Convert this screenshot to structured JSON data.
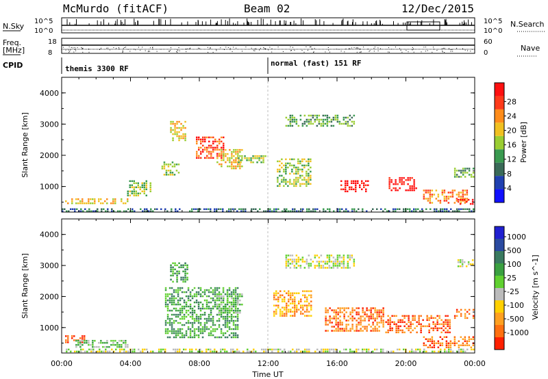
{
  "header": {
    "station": "McMurdo (fitACF)",
    "beam": "Beam 02",
    "date": "12/Dec/2015"
  },
  "top_panels": {
    "nsky_label": "N.Sky",
    "nsky_ticks": [
      "10^5",
      "10^0"
    ],
    "nsearch_label": "N.Search",
    "nsearch_ticks": [
      "10^5",
      "10^0"
    ],
    "freq_label": "Freq.",
    "freq_unit": "[MHz]",
    "freq_ticks": [
      "18",
      "8"
    ],
    "nave_label": "Nave",
    "nave_ticks": [
      "60",
      "0"
    ],
    "cpid_label": "CPID",
    "cpid_segments": [
      {
        "label": "themis 3300 RF",
        "start_hour": 0
      },
      {
        "label": "normal (fast) 151 RF",
        "start_hour": 12
      }
    ]
  },
  "colors": {
    "power_scale": [
      "#1010ff",
      "#2040b0",
      "#3a6a58",
      "#3a9a50",
      "#9acd32",
      "#f0c020",
      "#ff8c1a",
      "#ff3a1a",
      "#ff1010"
    ],
    "velocity_scale": [
      "#2020d0",
      "#2a4aa0",
      "#3a7a60",
      "#3aa040",
      "#60d030",
      "#bbbbbb",
      "#ffd000",
      "#ffa020",
      "#ff7010",
      "#ff2000"
    ]
  },
  "chart_data": [
    {
      "type": "heatmap",
      "title": "",
      "xlabel": "",
      "ylabel": "Slant Range [km]",
      "xlim": [
        0,
        24
      ],
      "ylim": [
        180,
        4500
      ],
      "x_ticks": [
        "00:00",
        "04:00",
        "08:00",
        "12:00",
        "16:00",
        "20:00",
        "00:00"
      ],
      "y_ticks": [
        "1000",
        "2000",
        "3000",
        "4000"
      ],
      "colorbar_label": "Power [dB]",
      "colorbar_ticks": [
        "4",
        "8",
        "12",
        "16",
        "20",
        "24",
        "28"
      ],
      "patches": [
        {
          "h0": 0.2,
          "h1": 3.8,
          "r0": 450,
          "r1": 620,
          "level": 5
        },
        {
          "h0": 0,
          "h1": 24,
          "r0": 180,
          "r1": 300,
          "level": 2
        },
        {
          "h0": 3.8,
          "h1": 5.2,
          "r0": 700,
          "r1": 1200,
          "level": 4
        },
        {
          "h0": 5.8,
          "h1": 6.8,
          "r0": 1400,
          "r1": 1800,
          "level": 4
        },
        {
          "h0": 6.3,
          "h1": 7.2,
          "r0": 2500,
          "r1": 3100,
          "level": 5
        },
        {
          "h0": 7.8,
          "h1": 9.4,
          "r0": 1900,
          "r1": 2600,
          "level": 7
        },
        {
          "h0": 9.0,
          "h1": 10.5,
          "r0": 1600,
          "r1": 2200,
          "level": 5
        },
        {
          "h0": 10.0,
          "h1": 11.8,
          "r0": 1800,
          "r1": 2000,
          "level": 4
        },
        {
          "h0": 12.5,
          "h1": 14.5,
          "r0": 1000,
          "r1": 1900,
          "level": 4
        },
        {
          "h0": 13.0,
          "h1": 17.0,
          "r0": 2950,
          "r1": 3300,
          "level": 3
        },
        {
          "h0": 16.2,
          "h1": 17.8,
          "r0": 850,
          "r1": 1200,
          "level": 8
        },
        {
          "h0": 19.0,
          "h1": 20.6,
          "r0": 900,
          "r1": 1300,
          "level": 8
        },
        {
          "h0": 21.0,
          "h1": 23.6,
          "r0": 450,
          "r1": 900,
          "level": 6
        },
        {
          "h0": 23.0,
          "h1": 23.9,
          "r0": 450,
          "r1": 600,
          "level": 8
        },
        {
          "h0": 22.8,
          "h1": 23.9,
          "r0": 1300,
          "r1": 1600,
          "level": 3
        }
      ]
    },
    {
      "type": "heatmap",
      "title": "",
      "xlabel": "Time UT",
      "ylabel": "Slant Range [km]",
      "xlim": [
        0,
        24
      ],
      "ylim": [
        180,
        4500
      ],
      "x_ticks": [
        "00:00",
        "04:00",
        "08:00",
        "12:00",
        "16:00",
        "20:00",
        "00:00"
      ],
      "y_ticks": [
        "1000",
        "2000",
        "3000",
        "4000"
      ],
      "colorbar_label": "Velocity [m s^-1]",
      "colorbar_ticks": [
        "1000",
        "500",
        "100",
        "25",
        "-25",
        "-100",
        "-500",
        "-1000"
      ],
      "patches": [
        {
          "h0": 0.2,
          "h1": 1.3,
          "r0": 500,
          "r1": 750,
          "level": 9
        },
        {
          "h0": 0.8,
          "h1": 3.8,
          "r0": 400,
          "r1": 600,
          "level": 4
        },
        {
          "h0": 0,
          "h1": 24,
          "r0": 180,
          "r1": 320,
          "level": 5
        },
        {
          "h0": 6.0,
          "h1": 10.2,
          "r0": 700,
          "r1": 2300,
          "level": 3
        },
        {
          "h0": 6.3,
          "h1": 7.3,
          "r0": 2500,
          "r1": 3100,
          "level": 3
        },
        {
          "h0": 9.0,
          "h1": 10.5,
          "r0": 1500,
          "r1": 2100,
          "level": 4
        },
        {
          "h0": 12.3,
          "h1": 14.5,
          "r0": 1400,
          "r1": 2200,
          "level": 7
        },
        {
          "h0": 13.0,
          "h1": 17.0,
          "r0": 2950,
          "r1": 3350,
          "level": 5
        },
        {
          "h0": 15.3,
          "h1": 18.7,
          "r0": 900,
          "r1": 1650,
          "level": 8
        },
        {
          "h0": 18.8,
          "h1": 22.6,
          "r0": 850,
          "r1": 1400,
          "level": 8
        },
        {
          "h0": 21.0,
          "h1": 23.9,
          "r0": 350,
          "r1": 720,
          "level": 8
        },
        {
          "h0": 22.8,
          "h1": 24.0,
          "r0": 1300,
          "r1": 1600,
          "level": 8
        },
        {
          "h0": 23.0,
          "h1": 23.9,
          "r0": 2950,
          "r1": 3200,
          "level": 5
        }
      ]
    }
  ]
}
